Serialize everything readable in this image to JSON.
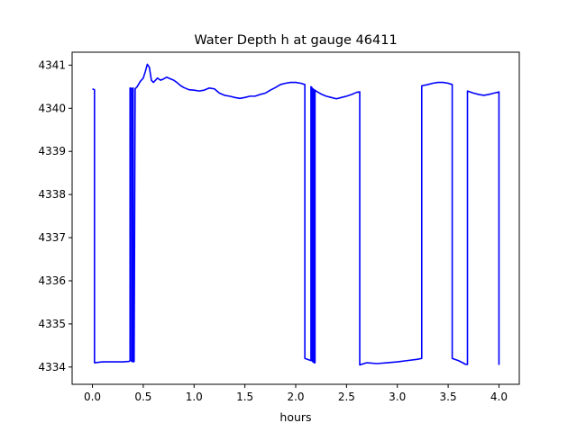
{
  "chart_data": {
    "type": "line",
    "title": "Water Depth h at gauge 46411",
    "xlabel": "hours",
    "ylabel": "",
    "xlim": [
      -0.2,
      4.2
    ],
    "ylim": [
      4333.6,
      4341.3
    ],
    "xticks": [
      0.0,
      0.5,
      1.0,
      1.5,
      2.0,
      2.5,
      3.0,
      3.5,
      4.0
    ],
    "xtick_labels": [
      "0.0",
      "0.5",
      "1.0",
      "1.5",
      "2.0",
      "2.5",
      "3.0",
      "3.5",
      "4.0"
    ],
    "yticks": [
      4334,
      4335,
      4336,
      4337,
      4338,
      4339,
      4340,
      4341
    ],
    "ytick_labels": [
      "4334",
      "4335",
      "4336",
      "4337",
      "4338",
      "4339",
      "4340",
      "4341"
    ],
    "grid": false,
    "legend": "none",
    "series": [
      {
        "color": "#0000ff",
        "x": [
          0.0,
          0.02,
          0.02,
          0.1,
          0.2,
          0.3,
          0.36,
          0.37,
          0.37,
          0.385,
          0.385,
          0.39,
          0.39,
          0.4,
          0.4,
          0.41,
          0.42,
          0.44,
          0.47,
          0.5,
          0.52,
          0.54,
          0.56,
          0.58,
          0.6,
          0.62,
          0.64,
          0.67,
          0.7,
          0.73,
          0.77,
          0.8,
          0.83,
          0.87,
          0.9,
          0.95,
          1.0,
          1.05,
          1.1,
          1.15,
          1.2,
          1.25,
          1.3,
          1.35,
          1.4,
          1.45,
          1.5,
          1.55,
          1.6,
          1.65,
          1.7,
          1.75,
          1.8,
          1.85,
          1.9,
          1.95,
          2.0,
          2.05,
          2.09,
          2.09,
          2.15,
          2.15,
          2.16,
          2.16,
          2.17,
          2.17,
          2.18,
          2.18,
          2.19,
          2.19,
          2.2,
          2.25,
          2.3,
          2.35,
          2.4,
          2.45,
          2.5,
          2.55,
          2.6,
          2.63,
          2.63,
          2.7,
          2.8,
          2.9,
          3.0,
          3.1,
          3.2,
          3.24,
          3.24,
          3.3,
          3.35,
          3.4,
          3.45,
          3.5,
          3.54,
          3.54,
          3.6,
          3.66,
          3.66,
          3.69,
          3.69,
          3.75,
          3.8,
          3.85,
          3.9,
          3.95,
          4.0,
          4.0
        ],
        "y": [
          4340.45,
          4340.43,
          4334.1,
          4334.12,
          4334.12,
          4334.12,
          4334.13,
          4334.15,
          4340.47,
          4340.46,
          4334.13,
          4334.14,
          4340.45,
          4340.47,
          4334.12,
          4334.13,
          4340.45,
          4340.5,
          4340.62,
          4340.7,
          4340.85,
          4341.02,
          4340.95,
          4340.65,
          4340.6,
          4340.65,
          4340.7,
          4340.65,
          4340.68,
          4340.72,
          4340.68,
          4340.65,
          4340.6,
          4340.52,
          4340.48,
          4340.43,
          4340.42,
          4340.4,
          4340.42,
          4340.47,
          4340.45,
          4340.35,
          4340.3,
          4340.28,
          4340.25,
          4340.23,
          4340.25,
          4340.28,
          4340.28,
          4340.32,
          4340.35,
          4340.42,
          4340.48,
          4340.55,
          4340.58,
          4340.6,
          4340.6,
          4340.58,
          4340.55,
          4334.2,
          4334.15,
          4340.5,
          4340.48,
          4334.15,
          4334.12,
          4340.45,
          4340.43,
          4334.1,
          4334.1,
          4340.42,
          4340.4,
          4340.33,
          4340.28,
          4340.25,
          4340.22,
          4340.25,
          4340.28,
          4340.32,
          4340.37,
          4340.38,
          4334.05,
          4334.1,
          4334.08,
          4334.1,
          4334.12,
          4334.15,
          4334.18,
          4334.2,
          4340.52,
          4340.55,
          4340.58,
          4340.6,
          4340.6,
          4340.58,
          4340.55,
          4334.2,
          4334.15,
          4334.08,
          4334.07,
          4334.06,
          4340.4,
          4340.35,
          4340.32,
          4340.3,
          4340.32,
          4340.35,
          4340.38,
          4334.05
        ]
      }
    ]
  }
}
